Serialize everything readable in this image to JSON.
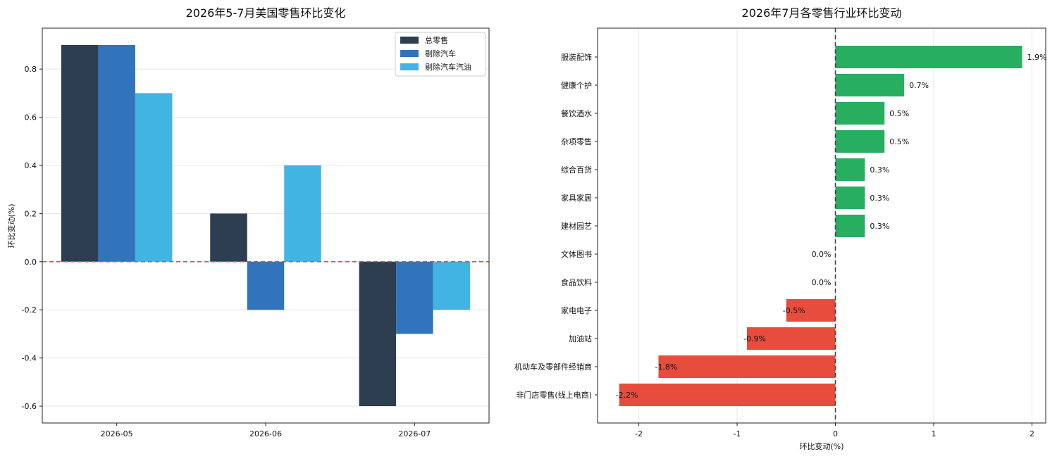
{
  "chart_data": [
    {
      "type": "bar",
      "title": "2026年5-7月美国零售环比变化",
      "xlabel": "",
      "ylabel": "环比变动(%)",
      "categories": [
        "2026-05",
        "2026-06",
        "2026-07"
      ],
      "series": [
        {
          "name": "总零售",
          "color": "#2c3e50",
          "values": [
            0.9,
            0.2,
            -0.6
          ]
        },
        {
          "name": "剔除汽车",
          "color": "#3274bb",
          "values": [
            0.9,
            -0.2,
            -0.3
          ]
        },
        {
          "name": "剔除汽车汽油",
          "color": "#42b4e4",
          "values": [
            0.7,
            0.4,
            -0.2
          ]
        }
      ],
      "ylim": [
        -0.67,
        0.97
      ],
      "yticks": [
        -0.6,
        -0.4,
        -0.2,
        0.0,
        0.2,
        0.4,
        0.6,
        0.8
      ],
      "ytick_labels": [
        "-0.6",
        "-0.4",
        "-0.2",
        "0.0",
        "0.2",
        "0.4",
        "0.6",
        "0.8"
      ],
      "reference_line": {
        "y": 0,
        "style": "dashed",
        "color": "#e74c3c"
      },
      "grid": "y",
      "legend": "top-right"
    },
    {
      "type": "bar",
      "orientation": "horizontal",
      "title": "2026年7月各零售行业环比变动",
      "xlabel": "环比变动(%)",
      "ylabel": "",
      "categories": [
        "服装配饰",
        "健康个护",
        "餐饮酒水",
        "杂项零售",
        "综合百货",
        "家具家居",
        "建材园艺",
        "文体图书",
        "食品饮料",
        "家电电子",
        "加油站",
        "机动车及零部件经销商",
        "非门店零售(线上电商)"
      ],
      "values": [
        1.9,
        0.7,
        0.5,
        0.5,
        0.3,
        0.3,
        0.3,
        0.0,
        0.0,
        -0.5,
        -0.9,
        -1.8,
        -2.2
      ],
      "labels": [
        "1.9%",
        "0.7%",
        "0.5%",
        "0.5%",
        "0.3%",
        "0.3%",
        "0.3%",
        "0.0%",
        "0.0%",
        "-0.5%",
        "-0.9%",
        "-1.8%",
        "-2.2%"
      ],
      "positive_color": "#27ae60",
      "negative_color": "#e74c3c",
      "xlim": [
        -2.42,
        2.14
      ],
      "xticks": [
        -2,
        -1,
        0,
        1,
        2
      ],
      "xtick_labels": [
        "-2",
        "-1",
        "0",
        "1",
        "2"
      ],
      "reference_line": {
        "x": 0,
        "style": "dashed",
        "color": "#444444"
      },
      "grid": "x",
      "legend": "none"
    }
  ]
}
